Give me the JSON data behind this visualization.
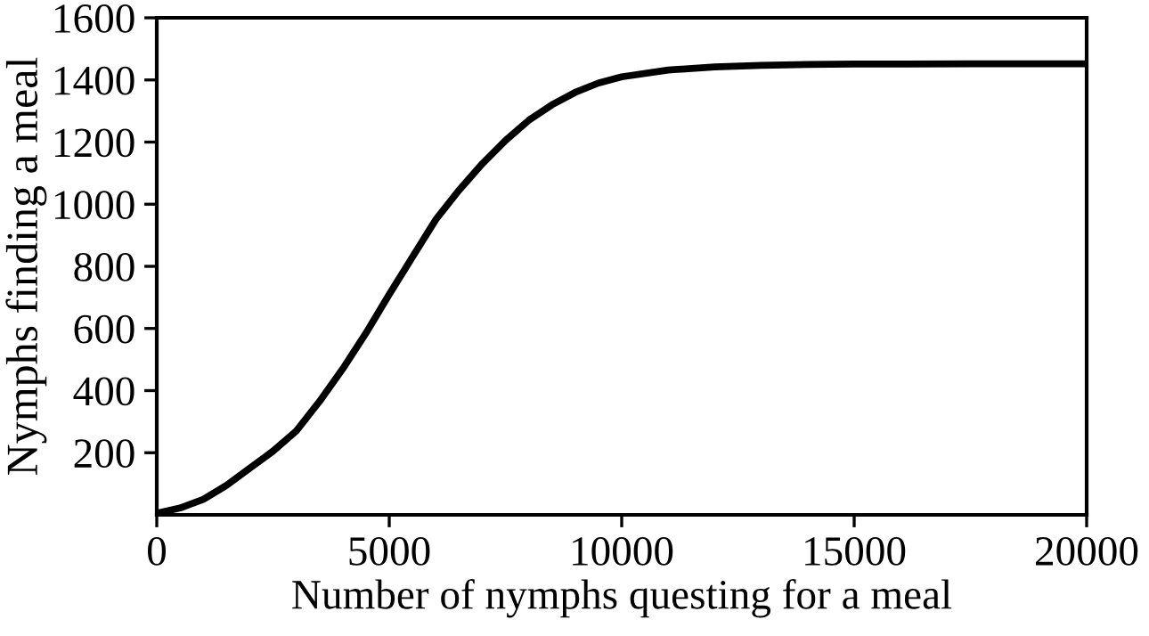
{
  "chart_data": {
    "type": "line",
    "xlabel": "Number of nymphs questing for a meal",
    "ylabel": "Nymphs finding a meal",
    "x": [
      0,
      500,
      1000,
      1500,
      2000,
      2500,
      3000,
      3500,
      4000,
      4500,
      5000,
      5500,
      6000,
      6500,
      7000,
      7500,
      8000,
      8500,
      9000,
      9500,
      10000,
      11000,
      12000,
      13000,
      14000,
      15000,
      17500,
      20000
    ],
    "series": [
      {
        "color": "#000000",
        "values": [
          5,
          22,
          50,
          95,
          150,
          205,
          270,
          365,
          470,
          585,
          710,
          830,
          950,
          1045,
          1130,
          1205,
          1270,
          1320,
          1360,
          1390,
          1410,
          1432,
          1442,
          1447,
          1450,
          1451,
          1452,
          1452
        ]
      }
    ],
    "xlim": [
      0,
      20000
    ],
    "ylim": [
      0,
      1600
    ],
    "xticks": [
      0,
      5000,
      10000,
      15000,
      20000
    ],
    "yticks": [
      200,
      400,
      600,
      800,
      1000,
      1200,
      1400,
      1600
    ],
    "grid": false,
    "legend": false,
    "marker": "none",
    "line_style": "solid"
  }
}
